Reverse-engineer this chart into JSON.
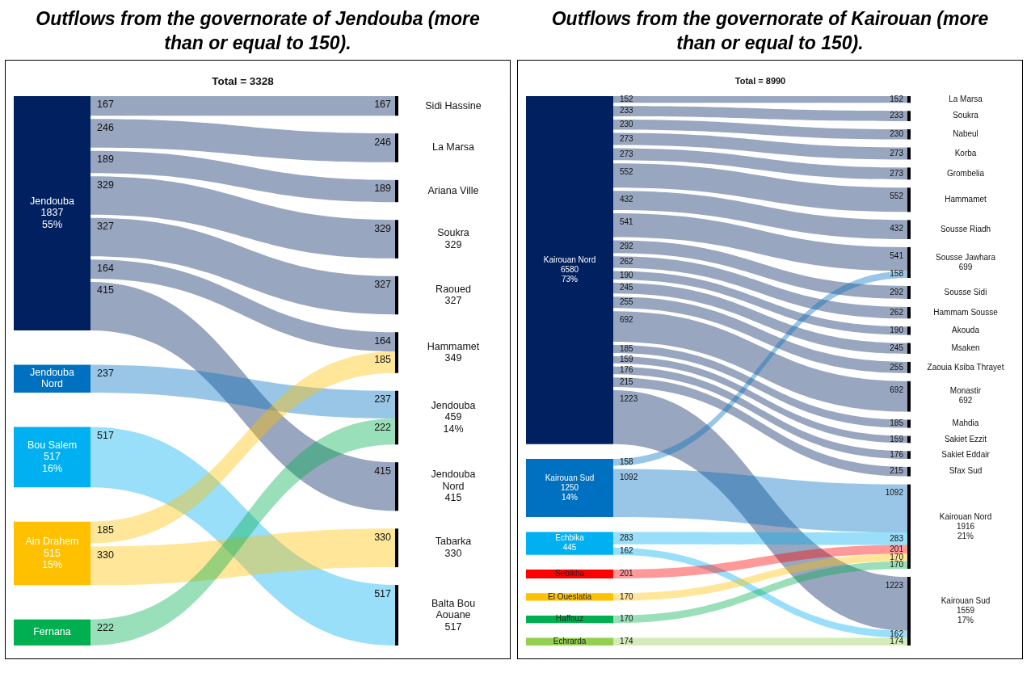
{
  "chart_data": [
    {
      "type": "other",
      "title": "Outflows from the governorate of Jendouba (more than or equal to 150).",
      "annotations": [
        "Total = 3328"
      ],
      "categories": [
        "Sidi Hassine",
        "La Marsa",
        "Ariana Ville",
        "Soukra\n329",
        "Raoued\n327",
        "Hammamet\n349",
        "Jendouba\n459\n14%",
        "Jendouba\nNord\n415",
        "Tabarka\n330",
        "Balta Bou\nAouane\n517"
      ],
      "series": [
        {
          "name": "Jendouba\n1837\n55%",
          "color": "#002060",
          "values": [
            167,
            246,
            189,
            329,
            327,
            164,
            null,
            415,
            null,
            null
          ],
          "value_labels": [
            "167",
            "246",
            "189",
            "329",
            "327",
            "164",
            null,
            "415",
            null,
            null
          ]
        },
        {
          "name": "Jendouba\nNord",
          "color": "#0070c0",
          "values": [
            null,
            null,
            null,
            null,
            null,
            null,
            237,
            null,
            null,
            null
          ],
          "value_labels": [
            null,
            null,
            null,
            null,
            null,
            null,
            "237",
            null,
            null,
            null
          ]
        },
        {
          "name": "Bou Salem\n517\n16%",
          "color": "#00b0f0",
          "values": [
            null,
            null,
            null,
            null,
            null,
            null,
            null,
            null,
            null,
            517
          ],
          "value_labels": [
            null,
            null,
            null,
            null,
            null,
            null,
            null,
            null,
            null,
            "517"
          ]
        },
        {
          "name": "Ain Drahem\n515\n15%",
          "color": "#ffc000",
          "values": [
            null,
            null,
            null,
            null,
            null,
            185,
            null,
            null,
            330,
            null
          ],
          "value_labels": [
            null,
            null,
            null,
            null,
            null,
            "185",
            null,
            null,
            "330",
            null
          ]
        },
        {
          "name": "Fernana",
          "color": "#00b050",
          "values": [
            null,
            null,
            null,
            null,
            null,
            null,
            222,
            null,
            null,
            null
          ],
          "value_labels": [
            null,
            null,
            null,
            null,
            null,
            null,
            "222",
            null,
            null,
            null
          ]
        }
      ]
    },
    {
      "type": "other",
      "title": "Outflows from the governorate of Kairouan (more than or equal to 150).",
      "annotations": [
        "Total = 8990"
      ],
      "categories": [
        "La Marsa",
        "Soukra",
        "Nabeul",
        "Korba",
        "Grombelia",
        "Hammamet",
        "Sousse Riadh",
        "Sousse Jawhara\n699",
        "Sousse Sidi",
        "Hammam Sousse",
        "Akouda",
        "Msaken",
        "Zaouia Ksiba Thrayet",
        "Monastir\n692",
        "Mahdia",
        "Sakiet Ezzit",
        "Sakiet Eddair",
        "Sfax Sud",
        "Kairouan Nord\n1916\n21%",
        "Kairouan Sud\n1559\n17%"
      ],
      "series": [
        {
          "name": "Kairouan Nord\n6580\n73%",
          "color": "#002060",
          "values": [
            152,
            233,
            230,
            273,
            273,
            552,
            432,
            541,
            292,
            262,
            190,
            245,
            255,
            692,
            185,
            159,
            176,
            215,
            null,
            1223
          ],
          "value_labels": [
            "152",
            "233",
            "230",
            "273",
            "273",
            "552",
            "432",
            "541",
            "292",
            "262",
            "190",
            "245",
            "255",
            "692",
            "185",
            "159",
            "176",
            "215",
            null,
            "1223"
          ]
        },
        {
          "name": "Kairouan Sud\n1250\n14%",
          "color": "#0070c0",
          "values": [
            null,
            null,
            null,
            null,
            null,
            null,
            null,
            158,
            null,
            null,
            null,
            null,
            null,
            null,
            null,
            null,
            null,
            null,
            1092,
            null
          ],
          "value_labels": [
            null,
            null,
            null,
            null,
            null,
            null,
            null,
            "158",
            null,
            null,
            null,
            null,
            null,
            null,
            null,
            null,
            null,
            null,
            "1092",
            null
          ]
        },
        {
          "name": "Echbika\n445",
          "color": "#00b0f0",
          "values": [
            null,
            null,
            null,
            null,
            null,
            null,
            null,
            null,
            null,
            null,
            null,
            null,
            null,
            null,
            null,
            null,
            null,
            null,
            283,
            162
          ],
          "value_labels": [
            null,
            null,
            null,
            null,
            null,
            null,
            null,
            null,
            null,
            null,
            null,
            null,
            null,
            null,
            null,
            null,
            null,
            null,
            "283",
            "162"
          ]
        },
        {
          "name": "Sebikha",
          "color": "#ff0000",
          "values": [
            null,
            null,
            null,
            null,
            null,
            null,
            null,
            null,
            null,
            null,
            null,
            null,
            null,
            null,
            null,
            null,
            null,
            null,
            201,
            null
          ],
          "value_labels": [
            null,
            null,
            null,
            null,
            null,
            null,
            null,
            null,
            null,
            null,
            null,
            null,
            null,
            null,
            null,
            null,
            null,
            null,
            "201",
            null
          ]
        },
        {
          "name": "El Oueslatia",
          "color": "#ffc000",
          "values": [
            null,
            null,
            null,
            null,
            null,
            null,
            null,
            null,
            null,
            null,
            null,
            null,
            null,
            null,
            null,
            null,
            null,
            null,
            170,
            null
          ],
          "value_labels": [
            null,
            null,
            null,
            null,
            null,
            null,
            null,
            null,
            null,
            null,
            null,
            null,
            null,
            null,
            null,
            null,
            null,
            null,
            "170",
            null
          ]
        },
        {
          "name": "Haffouz",
          "color": "#00b050",
          "values": [
            null,
            null,
            null,
            null,
            null,
            null,
            null,
            null,
            null,
            null,
            null,
            null,
            null,
            null,
            null,
            null,
            null,
            null,
            170,
            null
          ],
          "value_labels": [
            null,
            null,
            null,
            null,
            null,
            null,
            null,
            null,
            null,
            null,
            null,
            null,
            null,
            null,
            null,
            null,
            null,
            null,
            "170",
            null
          ]
        },
        {
          "name": "Echrarda",
          "color": "#92d050",
          "values": [
            null,
            null,
            null,
            null,
            null,
            null,
            null,
            null,
            null,
            null,
            null,
            null,
            null,
            null,
            null,
            null,
            null,
            null,
            null,
            174
          ],
          "value_labels": [
            null,
            null,
            null,
            null,
            null,
            null,
            null,
            null,
            null,
            null,
            null,
            null,
            null,
            null,
            null,
            null,
            null,
            null,
            null,
            "174"
          ]
        }
      ]
    }
  ]
}
